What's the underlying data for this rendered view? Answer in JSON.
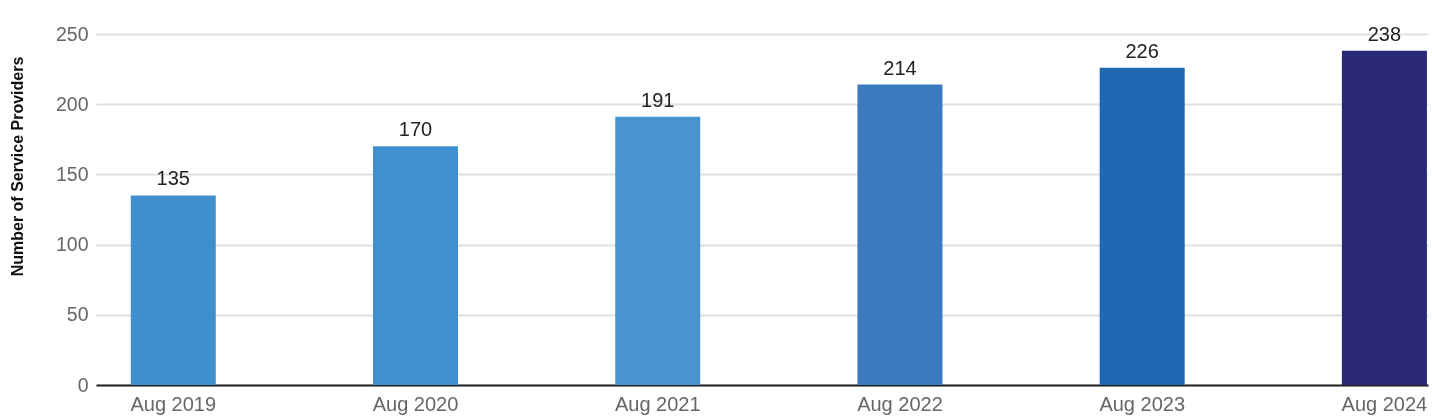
{
  "chart_data": {
    "type": "bar",
    "ylabel": "Number of Service Providers",
    "categories": [
      "Aug 2019",
      "Aug 2020",
      "Aug 2021",
      "Aug 2022",
      "Aug 2023",
      "Aug 2024"
    ],
    "values": [
      135,
      170,
      191,
      214,
      226,
      238
    ],
    "colors": [
      "#3f8fcd",
      "#4190cd",
      "#4893d0",
      "#3a7abe",
      "#1f69b2",
      "#282972"
    ],
    "ylim": [
      0,
      250
    ],
    "yticks": [
      0,
      50,
      100,
      150,
      200,
      250
    ],
    "grid": "y",
    "data_labels": true
  }
}
